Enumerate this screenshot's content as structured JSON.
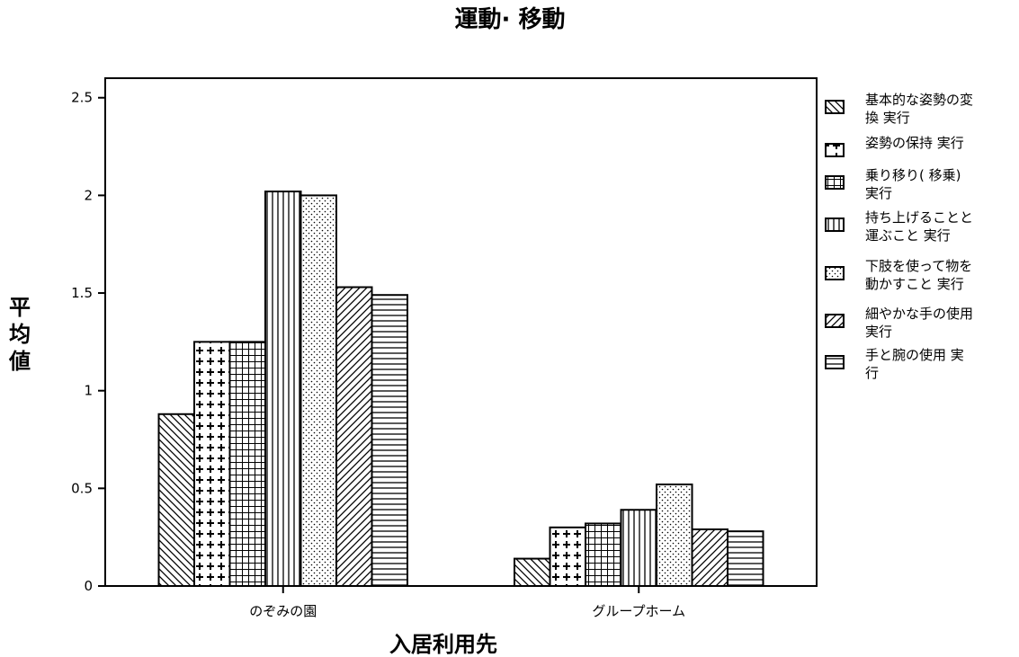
{
  "chart_data": {
    "type": "bar",
    "title": "運動· 移動",
    "xlabel": "入居利用先",
    "ylabel": "平均値",
    "categories": [
      "のぞみの園",
      "グループホーム"
    ],
    "ylim": [
      0,
      2.6
    ],
    "yticks": [
      "0",
      "0.5",
      "1",
      "1.5",
      "2",
      "2.5"
    ],
    "ytick_values": [
      0,
      0.5,
      1,
      1.5,
      2,
      2.5
    ],
    "legend_position": "right",
    "grid": false,
    "series": [
      {
        "name": "基本的な姿勢の変換 実行",
        "legend_lines": [
          "基本的な姿勢の変",
          "換 実行"
        ],
        "pattern": "diag-down",
        "values": [
          0.88,
          0.14
        ]
      },
      {
        "name": "姿勢の保持 実行",
        "legend_lines": [
          "姿勢の保持 実行"
        ],
        "pattern": "cross",
        "values": [
          1.25,
          0.3
        ]
      },
      {
        "name": "乗り移り( 移乗) 実行",
        "legend_lines": [
          "乗り移り( 移乗)",
          "実行"
        ],
        "pattern": "grid",
        "values": [
          1.25,
          0.32
        ]
      },
      {
        "name": "持ち上げることと運ぶこと 実行",
        "legend_lines": [
          "持ち上げることと",
          "運ぶこと 実行"
        ],
        "pattern": "vertical",
        "values": [
          2.02,
          0.39
        ]
      },
      {
        "name": "下肢を使って物を動かすこと 実行",
        "legend_lines": [
          "下肢を使って物を",
          "動かすこと 実行"
        ],
        "pattern": "dots",
        "values": [
          2.0,
          0.52
        ]
      },
      {
        "name": "細やかな手の使用 実行",
        "legend_lines": [
          "細やかな手の使用",
          "実行"
        ],
        "pattern": "diag-up",
        "values": [
          1.53,
          0.29
        ]
      },
      {
        "name": "手と腕の使用 実行",
        "legend_lines": [
          "手と腕の使用 実",
          "行"
        ],
        "pattern": "horizontal",
        "values": [
          1.49,
          0.28
        ]
      }
    ]
  }
}
